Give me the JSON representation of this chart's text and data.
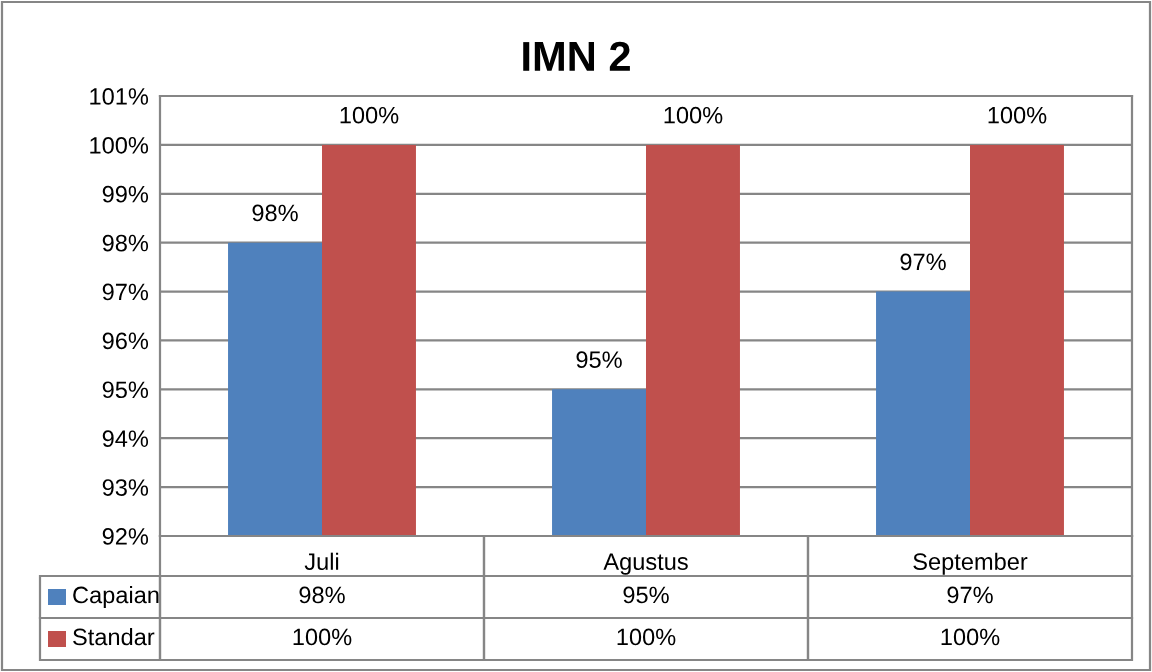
{
  "chart_data": {
    "type": "bar",
    "title": "IMN 2",
    "categories": [
      "Juli",
      "Agustus",
      "September"
    ],
    "series": [
      {
        "name": "Capaian",
        "color": "#4f81bd",
        "values": [
          98,
          95,
          97
        ],
        "value_labels": [
          "98%",
          "95%",
          "97%"
        ]
      },
      {
        "name": "Standar",
        "color": "#c0504d",
        "values": [
          100,
          100,
          100
        ],
        "value_labels": [
          "100%",
          "100%",
          "100%"
        ]
      }
    ],
    "ylim": [
      92,
      101
    ],
    "yticks": [
      {
        "value": 92,
        "label": "92%"
      },
      {
        "value": 93,
        "label": "93%"
      },
      {
        "value": 94,
        "label": "94%"
      },
      {
        "value": 95,
        "label": "95%"
      },
      {
        "value": 96,
        "label": "96%"
      },
      {
        "value": 97,
        "label": "97%"
      },
      {
        "value": 98,
        "label": "98%"
      },
      {
        "value": 99,
        "label": "99%"
      },
      {
        "value": 100,
        "label": "100%"
      },
      {
        "value": 101,
        "label": "101%"
      }
    ],
    "grid": "y",
    "legend": "bottom left"
  }
}
